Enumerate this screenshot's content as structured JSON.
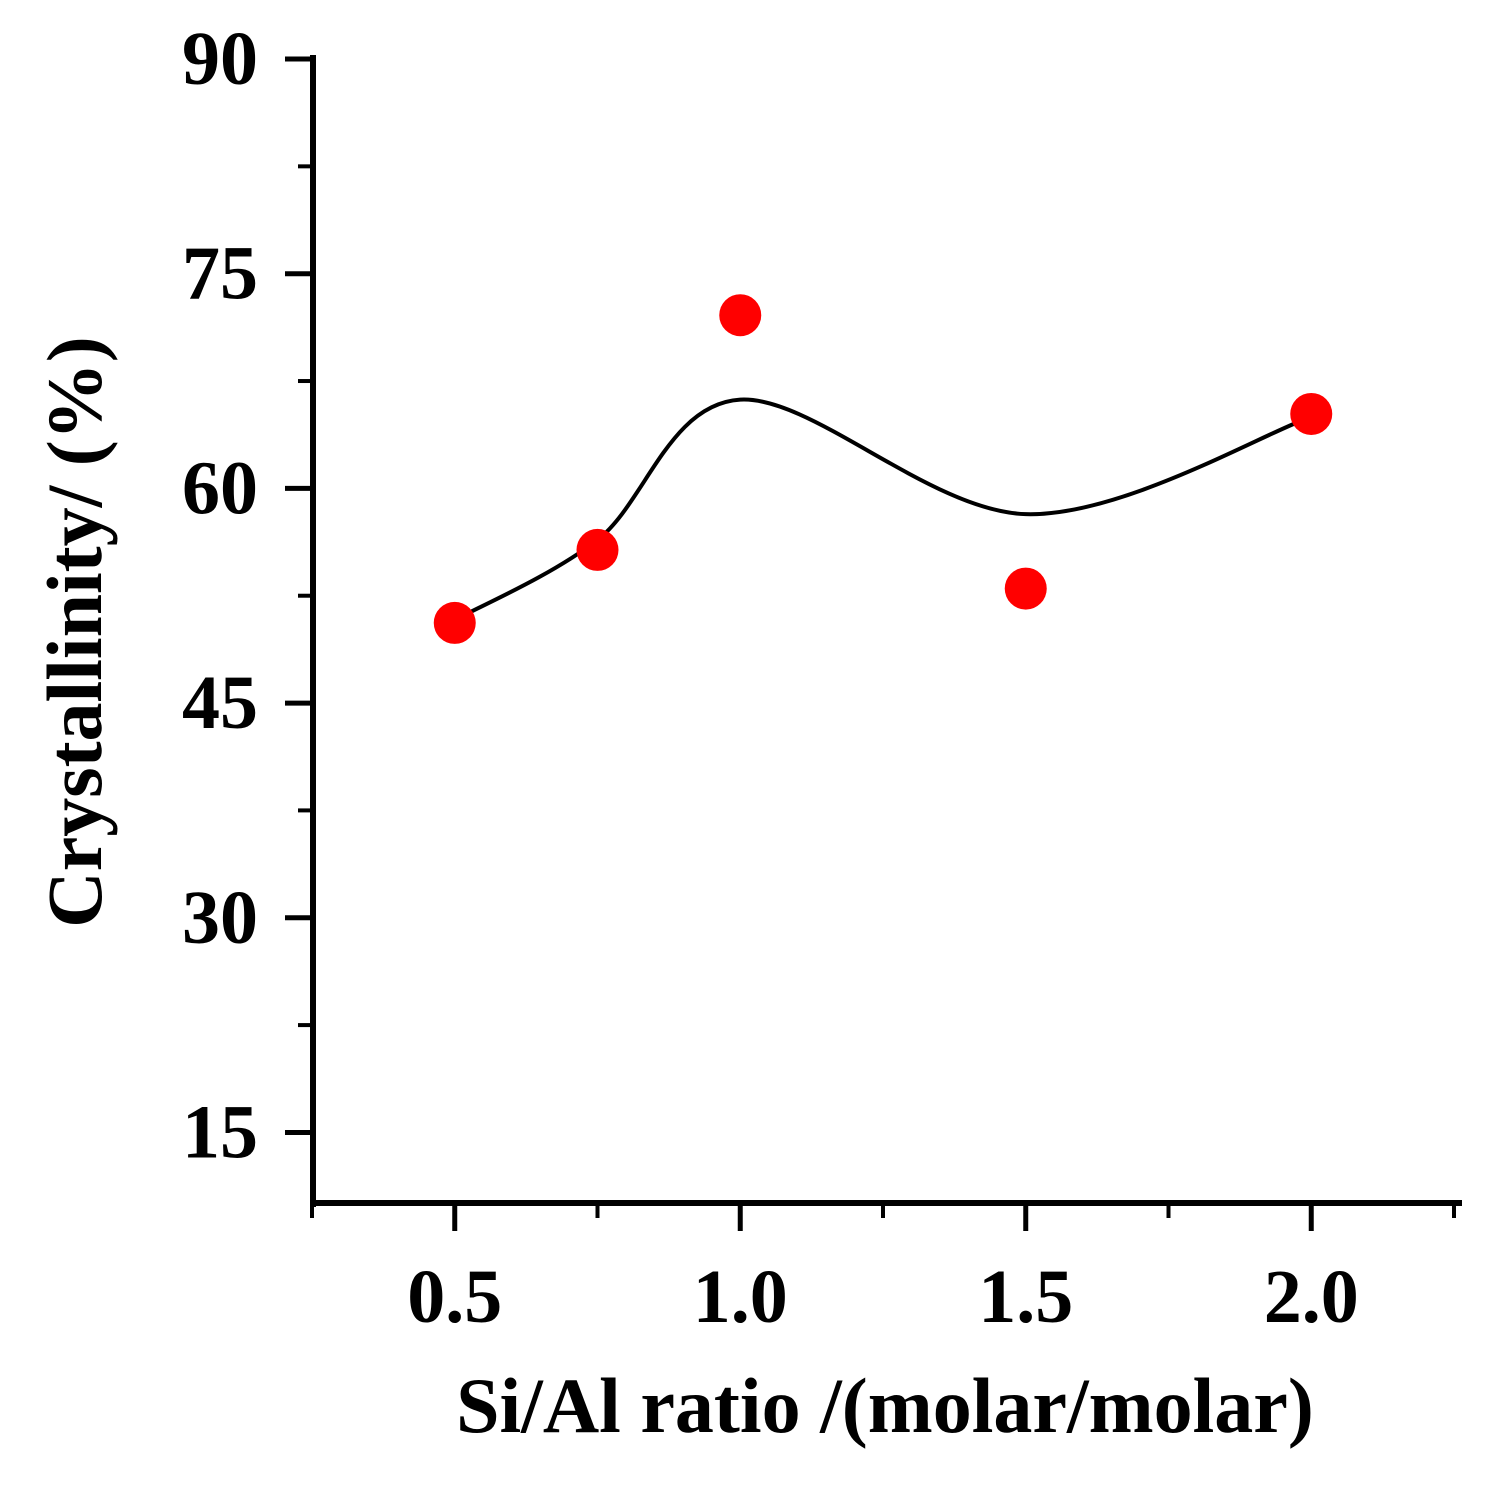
{
  "chart_data": {
    "type": "scatter",
    "title": "",
    "xlabel": "Si/Al ratio /(molar/molar)",
    "ylabel": "Crystallinity/ (%)",
    "xlim": [
      0.25,
      2.25
    ],
    "ylim": [
      10,
      90
    ],
    "x_ticks": [
      0.5,
      1.0,
      1.5,
      2.0
    ],
    "x_tick_labels": [
      "0.5",
      "1.0",
      "1.5",
      "2.0"
    ],
    "x_minor_ticks": [
      0.25,
      0.75,
      1.25,
      1.75,
      2.25
    ],
    "y_ticks": [
      15,
      30,
      45,
      60,
      75,
      90
    ],
    "y_tick_labels": [
      "15",
      "30",
      "45",
      "60",
      "75",
      "90"
    ],
    "y_minor_ticks": [
      22.5,
      37.5,
      52.5,
      67.5,
      82.5
    ],
    "grid": false,
    "series": [
      {
        "name": "Crystallinity",
        "type": "scatter",
        "color": "#ff0000",
        "x": [
          0.5,
          0.75,
          1.0,
          1.5,
          2.0
        ],
        "y": [
          50.6,
          55.7,
          72.1,
          53.0,
          65.2
        ]
      },
      {
        "name": "Fit",
        "type": "line",
        "color": "#000000",
        "x": [
          0.5,
          0.75,
          1.0,
          1.5,
          2.0
        ],
        "y": [
          50.8,
          56.4,
          66.2,
          58.2,
          65.0
        ]
      }
    ]
  }
}
